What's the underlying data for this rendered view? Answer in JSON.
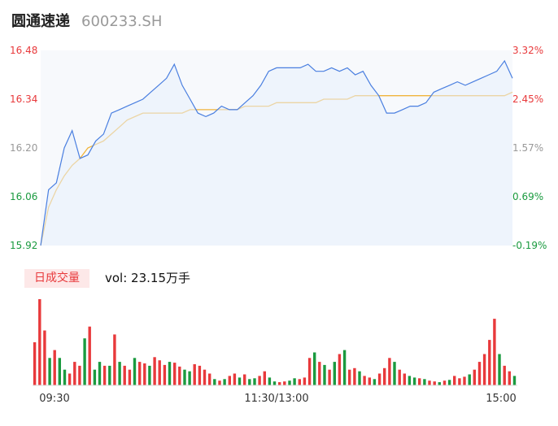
{
  "header": {
    "name": "圆通速递",
    "code": "600233.SH"
  },
  "volume": {
    "tag": "日成交量",
    "value": "vol: 23.15万手"
  },
  "colors": {
    "up": "#e8393b",
    "down": "#1a9a3f",
    "neutral": "#999999",
    "price": "#4a7fe0",
    "avg": "#f0b43c"
  },
  "chart_data": {
    "type": "line",
    "price_axis": {
      "ticks": [
        "16.48",
        "16.34",
        "16.20",
        "16.06",
        "15.92"
      ],
      "ylim": [
        15.92,
        16.48
      ]
    },
    "pct_axis": {
      "ticks": [
        "3.32%",
        "2.45%",
        "1.57%",
        "0.69%",
        "-0.19%"
      ]
    },
    "time_ticks": [
      "09:30",
      "11:30/13:00",
      "15:00"
    ],
    "series": [
      {
        "values": [
          15.92,
          16.08,
          16.1,
          16.2,
          16.25,
          16.17,
          16.18,
          16.22,
          16.24,
          16.3,
          16.31,
          16.32,
          16.33,
          16.34,
          16.36,
          16.38,
          16.4,
          16.44,
          16.38,
          16.34,
          16.3,
          16.29,
          16.3,
          16.32,
          16.31,
          16.31,
          16.33,
          16.35,
          16.38,
          16.42,
          16.43,
          16.43,
          16.43,
          16.43,
          16.44,
          16.42,
          16.42,
          16.43,
          16.42,
          16.43,
          16.41,
          16.42,
          16.38,
          16.35,
          16.3,
          16.3,
          16.31,
          16.32,
          16.32,
          16.33,
          16.36,
          16.37,
          16.38,
          16.39,
          16.38,
          16.39,
          16.4,
          16.41,
          16.42,
          16.45,
          16.4
        ]
      },
      {
        "values": [
          15.92,
          16.03,
          16.08,
          16.12,
          16.15,
          16.17,
          16.2,
          16.21,
          16.22,
          16.24,
          16.26,
          16.28,
          16.29,
          16.3,
          16.3,
          16.3,
          16.3,
          16.3,
          16.3,
          16.31,
          16.31,
          16.31,
          16.31,
          16.31,
          16.31,
          16.31,
          16.32,
          16.32,
          16.32,
          16.32,
          16.33,
          16.33,
          16.33,
          16.33,
          16.33,
          16.33,
          16.34,
          16.34,
          16.34,
          16.34,
          16.35,
          16.35,
          16.35,
          16.35,
          16.35,
          16.35,
          16.35,
          16.35,
          16.35,
          16.35,
          16.35,
          16.35,
          16.35,
          16.35,
          16.35,
          16.35,
          16.35,
          16.35,
          16.35,
          16.35,
          16.36
        ]
      }
    ],
    "volume_bars": [
      [
        55,
        1
      ],
      [
        110,
        1
      ],
      [
        70,
        1
      ],
      [
        35,
        0
      ],
      [
        45,
        1
      ],
      [
        35,
        0
      ],
      [
        20,
        0
      ],
      [
        15,
        1
      ],
      [
        30,
        1
      ],
      [
        25,
        1
      ],
      [
        60,
        0
      ],
      [
        75,
        1
      ],
      [
        20,
        0
      ],
      [
        30,
        0
      ],
      [
        25,
        1
      ],
      [
        25,
        0
      ],
      [
        65,
        1
      ],
      [
        30,
        0
      ],
      [
        25,
        1
      ],
      [
        20,
        1
      ],
      [
        35,
        0
      ],
      [
        30,
        1
      ],
      [
        28,
        1
      ],
      [
        25,
        0
      ],
      [
        36,
        1
      ],
      [
        32,
        1
      ],
      [
        26,
        1
      ],
      [
        30,
        0
      ],
      [
        29,
        1
      ],
      [
        24,
        1
      ],
      [
        20,
        0
      ],
      [
        18,
        0
      ],
      [
        27,
        1
      ],
      [
        25,
        1
      ],
      [
        20,
        1
      ],
      [
        15,
        1
      ],
      [
        8,
        0
      ],
      [
        6,
        1
      ],
      [
        8,
        0
      ],
      [
        12,
        1
      ],
      [
        15,
        1
      ],
      [
        10,
        0
      ],
      [
        14,
        1
      ],
      [
        8,
        0
      ],
      [
        9,
        0
      ],
      [
        12,
        1
      ],
      [
        18,
        1
      ],
      [
        10,
        0
      ],
      [
        5,
        0
      ],
      [
        4,
        1
      ],
      [
        5,
        1
      ],
      [
        6,
        0
      ],
      [
        9,
        0
      ],
      [
        8,
        1
      ],
      [
        10,
        1
      ],
      [
        35,
        1
      ],
      [
        42,
        0
      ],
      [
        30,
        1
      ],
      [
        26,
        0
      ],
      [
        20,
        1
      ],
      [
        30,
        0
      ],
      [
        40,
        1
      ],
      [
        45,
        0
      ],
      [
        20,
        1
      ],
      [
        22,
        1
      ],
      [
        18,
        0
      ],
      [
        12,
        1
      ],
      [
        10,
        1
      ],
      [
        8,
        0
      ],
      [
        15,
        1
      ],
      [
        22,
        1
      ],
      [
        35,
        1
      ],
      [
        30,
        0
      ],
      [
        20,
        1
      ],
      [
        15,
        1
      ],
      [
        12,
        0
      ],
      [
        10,
        0
      ],
      [
        9,
        1
      ],
      [
        8,
        0
      ],
      [
        6,
        1
      ],
      [
        5,
        1
      ],
      [
        4,
        0
      ],
      [
        6,
        1
      ],
      [
        7,
        0
      ],
      [
        12,
        1
      ],
      [
        9,
        1
      ],
      [
        11,
        1
      ],
      [
        14,
        0
      ],
      [
        20,
        1
      ],
      [
        30,
        1
      ],
      [
        40,
        1
      ],
      [
        58,
        1
      ],
      [
        85,
        1
      ],
      [
        40,
        0
      ],
      [
        25,
        1
      ],
      [
        18,
        1
      ],
      [
        12,
        0
      ]
    ]
  }
}
